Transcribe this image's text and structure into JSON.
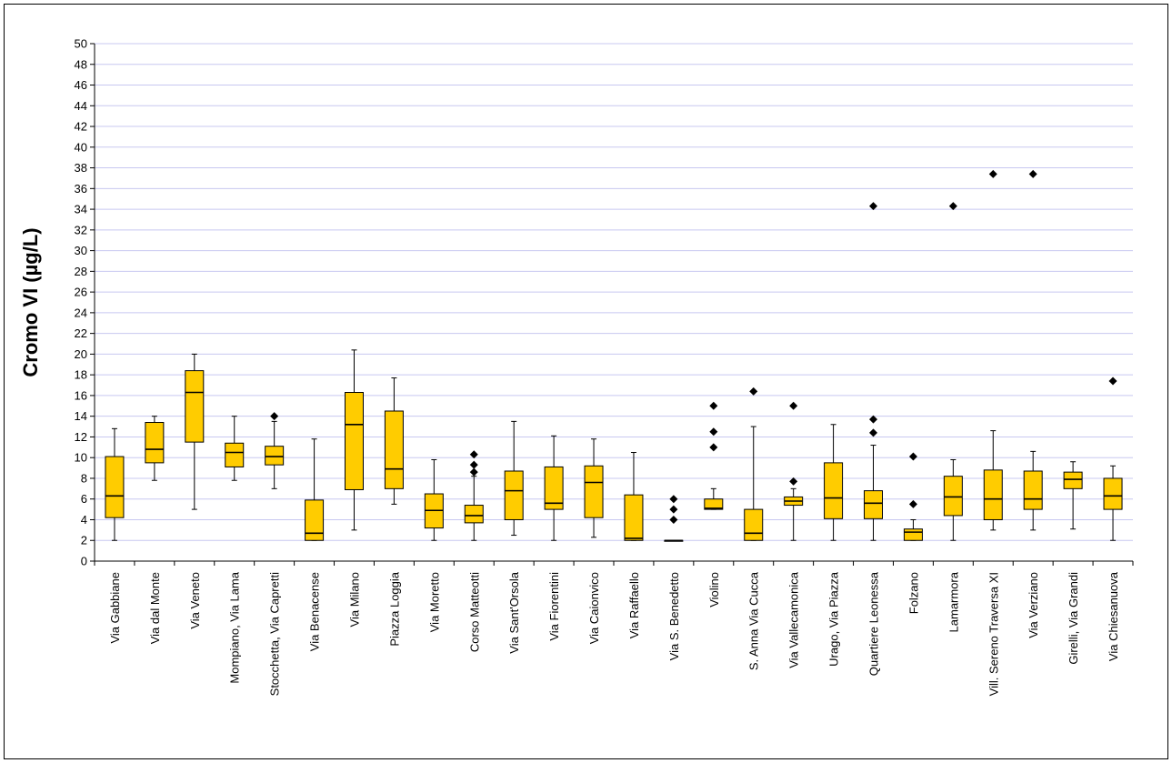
{
  "chart_data": {
    "type": "boxplot",
    "title": "",
    "xlabel": "",
    "ylabel": "Cromo VI (µg/L)",
    "ylim": [
      0,
      50
    ],
    "ytick_step": 2,
    "yticks": [
      "0",
      "2",
      "4",
      "6",
      "8",
      "10",
      "12",
      "14",
      "16",
      "18",
      "20",
      "22",
      "24",
      "26",
      "28",
      "30",
      "32",
      "34",
      "36",
      "38",
      "40",
      "42",
      "44",
      "46",
      "48",
      "50"
    ],
    "grid": "horizontal",
    "colors": {
      "box_fill": "#FFCC00",
      "grid": "#C8C8F0",
      "outline": "#000000"
    },
    "categories": [
      "Via Gabbiane",
      "Via dal Monte",
      "Via Veneto",
      "Mompiano, Via Lama",
      "Stocchetta, Via Capretti",
      "Via Benacense",
      "Via Milano",
      "Piazza Loggia",
      "Via Moretto",
      "Corso Matteotti",
      "Via Sant'Orsola",
      "Via Fiorentini",
      "Via Caionvico",
      "Via Raffaello",
      "Via S. Benedetto",
      "Violino",
      "S. Anna Via Cucca",
      "Via Vallecamonica",
      "Urago, Via Piazza",
      "Quartiere Leonessa",
      "Folzano",
      "Lamarmora",
      "Vill. Sereno Traversa XI",
      "Via Verziano",
      "Girelli, Via Grandi",
      "Via Chiesanuova"
    ],
    "boxes": [
      {
        "min": 2,
        "q1": 4.2,
        "median": 6.3,
        "q3": 10.1,
        "max": 12.8,
        "outliers": []
      },
      {
        "min": 7.8,
        "q1": 9.5,
        "median": 10.8,
        "q3": 13.4,
        "max": 14,
        "outliers": []
      },
      {
        "min": 5,
        "q1": 11.5,
        "median": 16.3,
        "q3": 18.4,
        "max": 20,
        "outliers": []
      },
      {
        "min": 7.8,
        "q1": 9.1,
        "median": 10.5,
        "q3": 11.4,
        "max": 14,
        "outliers": []
      },
      {
        "min": 7,
        "q1": 9.3,
        "median": 10.1,
        "q3": 11.1,
        "max": 13.5,
        "outliers": [
          14
        ]
      },
      {
        "min": 2,
        "q1": 2,
        "median": 2.7,
        "q3": 5.9,
        "max": 11.8,
        "outliers": []
      },
      {
        "min": 3,
        "q1": 6.9,
        "median": 13.2,
        "q3": 16.3,
        "max": 20.4,
        "outliers": []
      },
      {
        "min": 5.5,
        "q1": 7,
        "median": 8.9,
        "q3": 14.5,
        "max": 17.7,
        "outliers": []
      },
      {
        "min": 2,
        "q1": 3.2,
        "median": 4.9,
        "q3": 6.5,
        "max": 9.8,
        "outliers": []
      },
      {
        "min": 2,
        "q1": 3.7,
        "median": 4.4,
        "q3": 5.4,
        "max": 8.2,
        "outliers": [
          8.6,
          9.3,
          10.3
        ]
      },
      {
        "min": 2.5,
        "q1": 4,
        "median": 6.8,
        "q3": 8.7,
        "max": 13.5,
        "outliers": []
      },
      {
        "min": 2,
        "q1": 5,
        "median": 5.6,
        "q3": 9.1,
        "max": 12.1,
        "outliers": []
      },
      {
        "min": 2.3,
        "q1": 4.2,
        "median": 7.6,
        "q3": 9.2,
        "max": 11.8,
        "outliers": []
      },
      {
        "min": 2,
        "q1": 2,
        "median": 2.2,
        "q3": 6.4,
        "max": 10.5,
        "outliers": []
      },
      {
        "min": 2,
        "q1": 2,
        "median": 2,
        "q3": 2,
        "max": 2,
        "outliers": [
          4,
          5,
          6
        ]
      },
      {
        "min": 5,
        "q1": 5,
        "median": 5.1,
        "q3": 6,
        "max": 7,
        "outliers": [
          11,
          12.5,
          15
        ]
      },
      {
        "min": 2,
        "q1": 2,
        "median": 2.7,
        "q3": 5,
        "max": 13,
        "outliers": [
          16.4
        ]
      },
      {
        "min": 2,
        "q1": 5.4,
        "median": 5.8,
        "q3": 6.2,
        "max": 7,
        "outliers": [
          7.7,
          15
        ]
      },
      {
        "min": 2,
        "q1": 4.1,
        "median": 6.1,
        "q3": 9.5,
        "max": 13.2,
        "outliers": []
      },
      {
        "min": 2,
        "q1": 4.1,
        "median": 5.6,
        "q3": 6.8,
        "max": 11.2,
        "outliers": [
          12.4,
          13.7,
          34.3
        ]
      },
      {
        "min": 2,
        "q1": 2,
        "median": 2.8,
        "q3": 3.1,
        "max": 4,
        "outliers": [
          5.5,
          10.1
        ]
      },
      {
        "min": 2,
        "q1": 4.4,
        "median": 6.2,
        "q3": 8.2,
        "max": 9.8,
        "outliers": [
          34.3
        ]
      },
      {
        "min": 3,
        "q1": 4,
        "median": 6,
        "q3": 8.8,
        "max": 12.6,
        "outliers": [
          37.4
        ]
      },
      {
        "min": 3,
        "q1": 5,
        "median": 6,
        "q3": 8.7,
        "max": 10.6,
        "outliers": [
          37.4
        ]
      },
      {
        "min": 3.1,
        "q1": 7,
        "median": 7.9,
        "q3": 8.6,
        "max": 9.6,
        "outliers": []
      },
      {
        "min": 2,
        "q1": 5,
        "median": 6.3,
        "q3": 8,
        "max": 9.2,
        "outliers": [
          17.4
        ]
      }
    ]
  }
}
